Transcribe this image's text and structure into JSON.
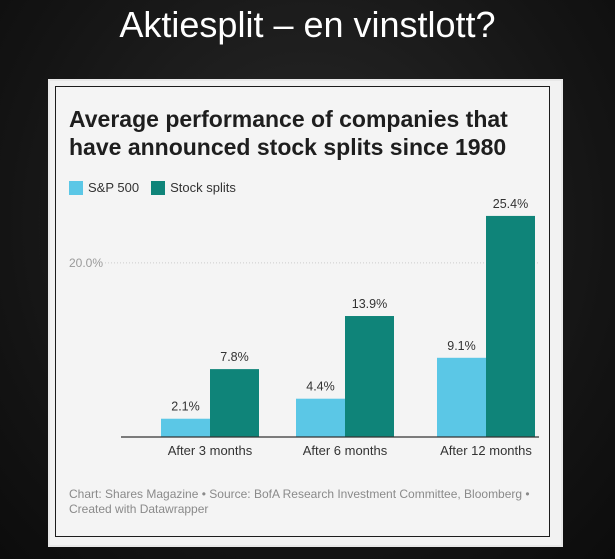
{
  "slide": {
    "title": "Aktiesplit – en vinstlott?"
  },
  "colors": {
    "sp500": "#5bc7e6",
    "stock_splits": "#0f8479",
    "axis": "#333333",
    "grid": "#cccccc"
  },
  "chart_data": {
    "type": "bar",
    "title": "Average performance of companies that have announced stock splits since 1980",
    "categories": [
      "After 3 months",
      "After 6 months",
      "After 12 months"
    ],
    "series": [
      {
        "name": "S&P 500",
        "values": [
          2.1,
          4.4,
          9.1
        ],
        "labels": [
          "2.1%",
          "4.4%",
          "9.1%"
        ]
      },
      {
        "name": "Stock splits",
        "values": [
          7.8,
          13.9,
          25.4
        ],
        "labels": [
          "7.8%",
          "13.9%",
          "25.4%"
        ]
      }
    ],
    "y_ticks": [
      {
        "value": 20,
        "label": "20.0%"
      }
    ],
    "ylim": [
      0,
      27
    ],
    "legend": "top-left",
    "source": "Chart: Shares Magazine • Source: BofA Research Investment Committee, Bloomberg • Created with Datawrapper"
  }
}
